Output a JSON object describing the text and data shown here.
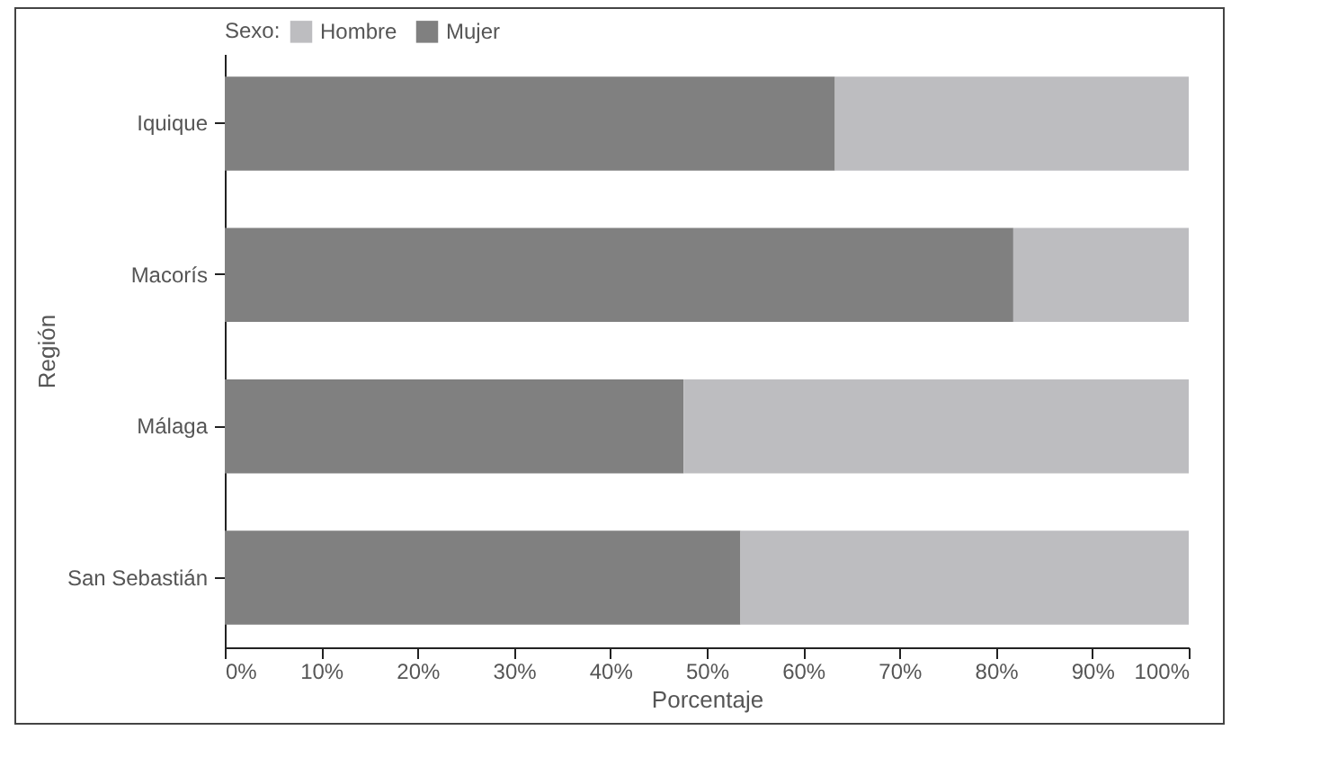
{
  "chart_data": {
    "type": "bar",
    "orientation": "horizontal",
    "stacked": true,
    "categories": [
      "Iquique",
      "Macorís",
      "Málaga",
      "San Sebastián"
    ],
    "series": [
      {
        "name": "Mujer",
        "color": "#808080",
        "values": [
          63.3,
          81.8,
          47.6,
          53.5
        ]
      },
      {
        "name": "Hombre",
        "color": "#bdbdc0",
        "values": [
          36.7,
          18.2,
          52.4,
          46.5
        ]
      }
    ],
    "xlim": [
      0,
      100
    ],
    "xticks": [
      {
        "value": 0,
        "label": "0%"
      },
      {
        "value": 10,
        "label": "10%"
      },
      {
        "value": 20,
        "label": "20%"
      },
      {
        "value": 30,
        "label": "30%"
      },
      {
        "value": 40,
        "label": "40%"
      },
      {
        "value": 50,
        "label": "50%"
      },
      {
        "value": 60,
        "label": "60%"
      },
      {
        "value": 70,
        "label": "70%"
      },
      {
        "value": 80,
        "label": "80%"
      },
      {
        "value": 90,
        "label": "90%"
      },
      {
        "value": 100,
        "label": "100%"
      }
    ],
    "xlabel": "Porcentaje",
    "ylabel": "Región",
    "legend_title": "Sexo:",
    "legend": "top left",
    "grid": false
  }
}
